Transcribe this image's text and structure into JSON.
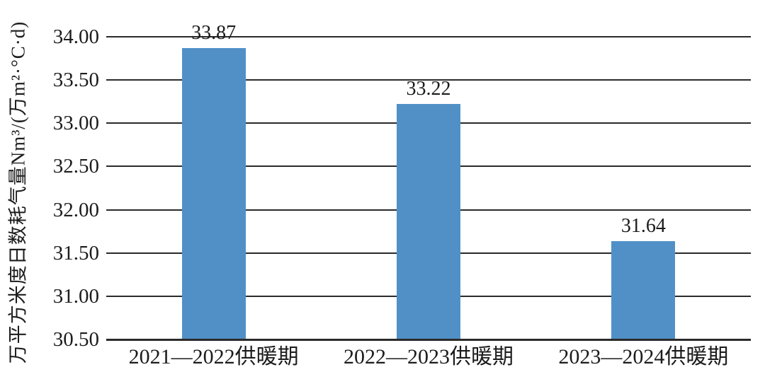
{
  "chart_data": {
    "type": "bar",
    "title": "",
    "categories": [
      "2021—2022供暖期",
      "2022—2023供暖期",
      "2023—2024供暖期"
    ],
    "values": [
      33.87,
      33.22,
      31.64
    ],
    "data_labels": [
      "33.87",
      "33.22",
      "31.64"
    ],
    "ylabel": "万平方米度日数耗气量Nm³/(万m²·°C·d)",
    "xlabel": "",
    "ytick_labels": [
      "30.50",
      "31.00",
      "31.50",
      "32.00",
      "32.50",
      "33.00",
      "33.50",
      "34.00"
    ],
    "yticks": [
      30.5,
      31.0,
      31.5,
      32.0,
      32.5,
      33.0,
      33.5,
      34.0
    ],
    "ylim": [
      30.5,
      34.0
    ],
    "grid": true,
    "legend": false,
    "bar_color": "#5190C7",
    "gridline_color": "#2a2a2a",
    "text_color": "#1c1c1c",
    "background": "#ffffff"
  }
}
